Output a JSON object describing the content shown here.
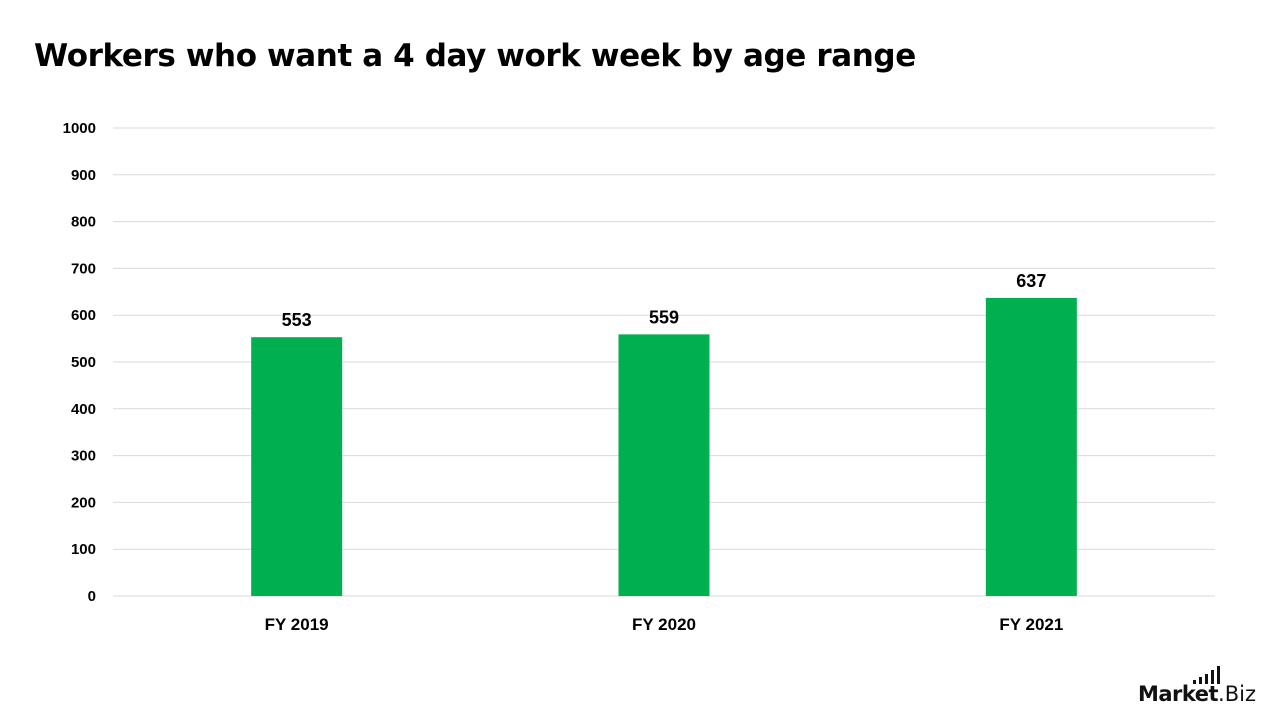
{
  "chart_data": {
    "type": "bar",
    "title": "Workers who want a 4 day work week by age range",
    "categories": [
      "FY 2019",
      "FY 2020",
      "FY 2021"
    ],
    "values": [
      553,
      559,
      637
    ],
    "data_labels": [
      "553",
      "559",
      "637"
    ],
    "ylim": [
      0,
      1000
    ],
    "y_ticks": [
      0,
      100,
      200,
      300,
      400,
      500,
      600,
      700,
      800,
      900,
      1000
    ],
    "xlabel": "",
    "ylabel": "",
    "grid": true,
    "legend": "none",
    "bar_color": "#00B050"
  },
  "branding": {
    "logo_market": "Market",
    "logo_dot_biz": ".Biz",
    "logo_icon": "signal-bars-icon"
  }
}
